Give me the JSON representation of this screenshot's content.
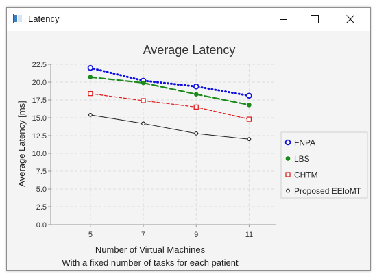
{
  "window": {
    "title": "Latency",
    "icons": {
      "app": "chart-window-icon",
      "minimize": "minimize-icon",
      "maximize": "maximize-icon",
      "close": "close-icon"
    }
  },
  "chart_data": {
    "type": "line",
    "title": "Average Latency",
    "xlabel": "Number of Virtual Machines",
    "subtitle": "With a fixed number of tasks for each patient",
    "ylabel": "Average Latency [ms]",
    "x": [
      5,
      7,
      9,
      11
    ],
    "x_tick_labels": [
      "5",
      "7",
      "9",
      "11"
    ],
    "xlim": [
      3.5,
      12
    ],
    "ylim": [
      0,
      22.5
    ],
    "y_ticks": [
      "0.0",
      "2.5",
      "5.0",
      "7.5",
      "10.0",
      "12.5",
      "15.0",
      "17.5",
      "20.0",
      "22.5"
    ],
    "grid": true,
    "legend_position": "right",
    "series": [
      {
        "name": "FNPA",
        "values": [
          22.0,
          20.2,
          19.4,
          18.1
        ],
        "color": "#1010e0",
        "marker": "open-circle",
        "line": "dotted"
      },
      {
        "name": "LBS",
        "values": [
          20.7,
          19.9,
          18.3,
          16.8
        ],
        "color": "#1a8a1a",
        "marker": "filled-circle",
        "line": "dashed"
      },
      {
        "name": "CHTM",
        "values": [
          18.4,
          17.4,
          16.5,
          14.8
        ],
        "color": "#e02020",
        "marker": "open-square",
        "line": "short-dashed"
      },
      {
        "name": "Proposed EEIoMT",
        "values": [
          15.4,
          14.2,
          12.8,
          12.0
        ],
        "color": "#222222",
        "marker": "open-circle-small",
        "line": "solid"
      }
    ]
  }
}
